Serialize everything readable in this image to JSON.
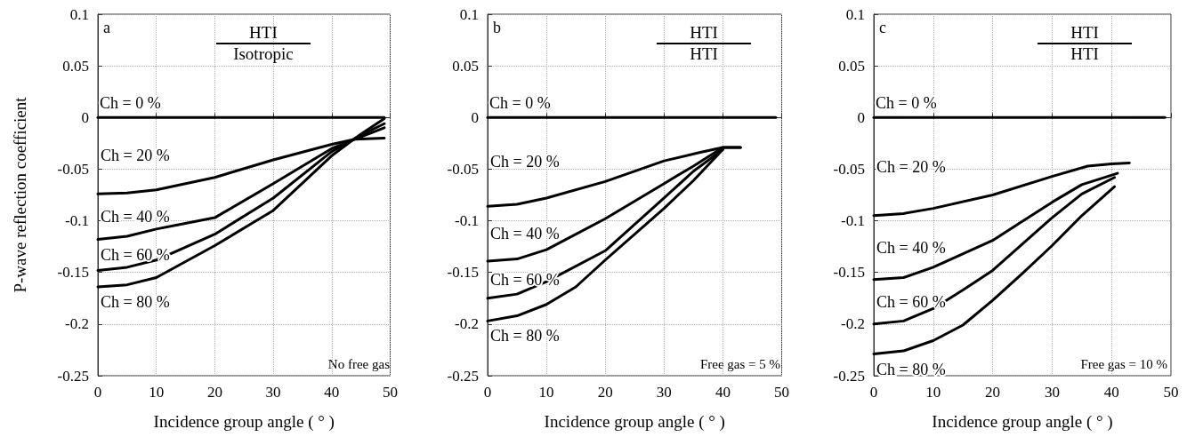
{
  "chart_data": [
    {
      "type": "line",
      "ylabel": "P-wave reflection coefficient",
      "xlabel": "Incidence group angle ( ° )",
      "annotations": [
        "a",
        "HTI",
        "Isotropic",
        "No free gas"
      ],
      "xlim": [
        0,
        50
      ],
      "xticks": [
        0,
        10,
        20,
        30,
        40,
        50
      ],
      "ylim": [
        -0.25,
        0.1
      ],
      "yticks": [
        -0.25,
        -0.2,
        -0.15,
        -0.1,
        -0.05,
        0,
        0.05,
        0.1
      ],
      "grid": true,
      "marker": "none",
      "line_style": "solid",
      "series": [
        {
          "name": "Ch = 0 %",
          "color": "#000000",
          "x": [
            0,
            49
          ],
          "values": [
            0,
            0
          ]
        },
        {
          "name": "Ch = 20 %",
          "color": "#000000",
          "x": [
            0,
            5,
            10,
            20,
            30,
            40,
            44,
            49
          ],
          "values": [
            -0.074,
            -0.073,
            -0.07,
            -0.058,
            -0.041,
            -0.026,
            -0.021,
            -0.02
          ]
        },
        {
          "name": "Ch = 40 %",
          "color": "#000000",
          "x": [
            0,
            5,
            10,
            20,
            30,
            40,
            44,
            49
          ],
          "values": [
            -0.118,
            -0.115,
            -0.108,
            -0.097,
            -0.064,
            -0.03,
            -0.021,
            -0.01
          ]
        },
        {
          "name": "Ch = 60 %",
          "color": "#000000",
          "x": [
            0,
            5,
            10,
            20,
            30,
            40,
            45,
            49
          ],
          "values": [
            -0.148,
            -0.145,
            -0.138,
            -0.113,
            -0.078,
            -0.033,
            -0.017,
            -0.006
          ]
        },
        {
          "name": "Ch = 80 %",
          "color": "#000000",
          "x": [
            0,
            5,
            10,
            20,
            30,
            40,
            45,
            49
          ],
          "values": [
            -0.164,
            -0.162,
            -0.155,
            -0.124,
            -0.09,
            -0.037,
            -0.016,
            -0.001
          ]
        }
      ]
    },
    {
      "type": "line",
      "xlabel": "Incidence group angle ( ° )",
      "annotations": [
        "b",
        "HTI",
        "HTI",
        "Free gas = 5 %"
      ],
      "xlim": [
        0,
        50
      ],
      "xticks": [
        0,
        10,
        20,
        30,
        40,
        50
      ],
      "ylim": [
        -0.25,
        0.1
      ],
      "yticks": [
        -0.25,
        -0.2,
        -0.15,
        -0.1,
        -0.05,
        0,
        0.05,
        0.1
      ],
      "grid": true,
      "marker": "none",
      "line_style": "solid",
      "series": [
        {
          "name": "Ch = 0 %",
          "color": "#000000",
          "x": [
            0,
            49
          ],
          "values": [
            0,
            0
          ]
        },
        {
          "name": "Ch = 20 %",
          "color": "#000000",
          "x": [
            0,
            5,
            10,
            20,
            30,
            36,
            40,
            43
          ],
          "values": [
            -0.086,
            -0.084,
            -0.078,
            -0.062,
            -0.042,
            -0.034,
            -0.029,
            -0.029
          ]
        },
        {
          "name": "Ch = 40 %",
          "color": "#000000",
          "x": [
            0,
            5,
            10,
            20,
            30,
            35,
            40,
            43
          ],
          "values": [
            -0.139,
            -0.137,
            -0.128,
            -0.098,
            -0.064,
            -0.047,
            -0.029,
            -0.029
          ]
        },
        {
          "name": "Ch = 60 %",
          "color": "#000000",
          "x": [
            0,
            5,
            10,
            20,
            30,
            35,
            40
          ],
          "values": [
            -0.175,
            -0.171,
            -0.159,
            -0.129,
            -0.078,
            -0.052,
            -0.031
          ]
        },
        {
          "name": "Ch = 80 %",
          "color": "#000000",
          "x": [
            0,
            5,
            10,
            15,
            20,
            30,
            35,
            40
          ],
          "values": [
            -0.197,
            -0.192,
            -0.181,
            -0.164,
            -0.138,
            -0.088,
            -0.061,
            -0.031
          ]
        }
      ]
    },
    {
      "type": "line",
      "xlabel": "Incidence group angle ( ° )",
      "annotations": [
        "c",
        "HTI",
        "HTI",
        "Free gas = 10 %"
      ],
      "xlim": [
        0,
        50
      ],
      "xticks": [
        0,
        10,
        20,
        30,
        40,
        50
      ],
      "ylim": [
        -0.25,
        0.1
      ],
      "yticks": [
        -0.25,
        -0.2,
        -0.15,
        -0.1,
        -0.05,
        0,
        0.05,
        0.1
      ],
      "grid": true,
      "marker": "none",
      "line_style": "solid",
      "series": [
        {
          "name": "Ch = 0 %",
          "color": "#000000",
          "x": [
            0,
            49
          ],
          "values": [
            0,
            0
          ]
        },
        {
          "name": "Ch = 20 %",
          "color": "#000000",
          "x": [
            0,
            5,
            10,
            20,
            30,
            36,
            40,
            43
          ],
          "values": [
            -0.095,
            -0.093,
            -0.088,
            -0.075,
            -0.057,
            -0.047,
            -0.045,
            -0.044
          ]
        },
        {
          "name": "Ch = 40 %",
          "color": "#000000",
          "x": [
            0,
            5,
            10,
            20,
            30,
            35,
            41
          ],
          "values": [
            -0.157,
            -0.155,
            -0.145,
            -0.119,
            -0.082,
            -0.065,
            -0.054
          ]
        },
        {
          "name": "Ch = 60 %",
          "color": "#000000",
          "x": [
            0,
            5,
            10,
            15,
            20,
            30,
            35,
            40.5
          ],
          "values": [
            -0.2,
            -0.197,
            -0.185,
            -0.167,
            -0.148,
            -0.097,
            -0.074,
            -0.058
          ]
        },
        {
          "name": "Ch = 80 %",
          "color": "#000000",
          "x": [
            0,
            5,
            10,
            15,
            20,
            25,
            30,
            35,
            40.5
          ],
          "values": [
            -0.229,
            -0.226,
            -0.216,
            -0.201,
            -0.177,
            -0.151,
            -0.124,
            -0.095,
            -0.067
          ]
        }
      ]
    }
  ]
}
